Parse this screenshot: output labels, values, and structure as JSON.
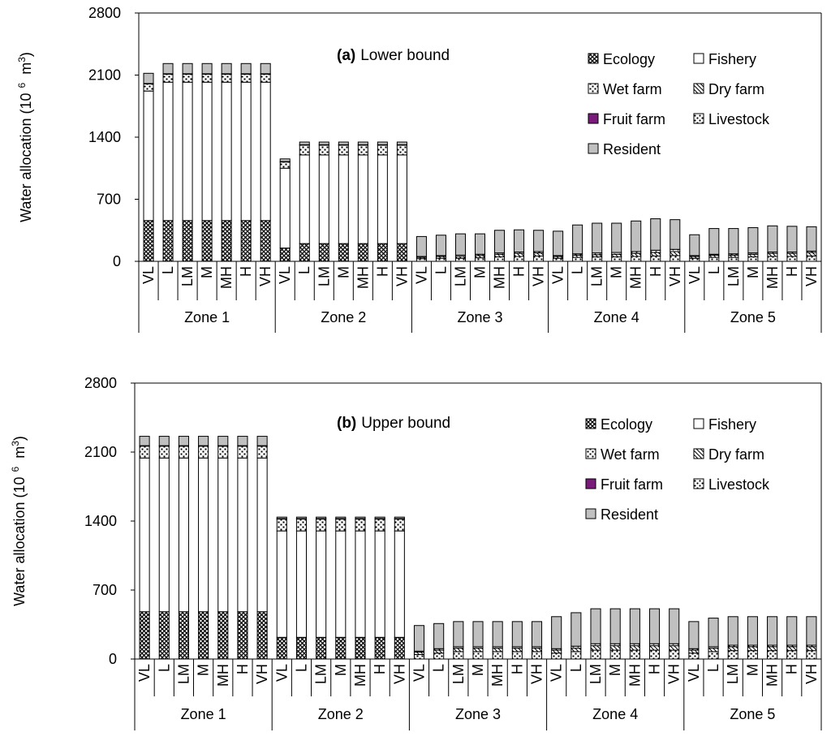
{
  "colors": {
    "fruit_farm": "#7a1a7a",
    "resident": "#c0c0c0",
    "axis": "#000000"
  },
  "legend": [
    {
      "key": "ecology",
      "label": "Ecology",
      "fill": "ecology"
    },
    {
      "key": "fishery",
      "label": "Fishery",
      "fill": "fishery"
    },
    {
      "key": "wet_farm",
      "label": "Wet farm",
      "fill": "wet"
    },
    {
      "key": "dry_farm",
      "label": "Dry farm",
      "fill": "dry"
    },
    {
      "key": "fruit_farm",
      "label": "Fruit farm",
      "fill": "fruit"
    },
    {
      "key": "livestock",
      "label": "Livestock",
      "fill": "livestock"
    },
    {
      "key": "resident",
      "label": "Resident",
      "fill": "resident"
    }
  ],
  "chart_data": [
    {
      "type": "bar",
      "stacked": true,
      "title_prefix": "(a)",
      "title": "Lower bound",
      "ylabel": "Water allocation (10",
      "ylabel_exp": "6",
      "ylabel_unit": "m",
      "ylabel_unit_exp": "3",
      "ylabel_close": ")",
      "ylim": [
        0,
        2800
      ],
      "yticks": [
        "0",
        "700",
        "1400",
        "2100",
        "2800"
      ],
      "zones": [
        "Zone 1",
        "Zone 2",
        "Zone 3",
        "Zone 4",
        "Zone 5"
      ],
      "scenarios": [
        "VL",
        "L",
        "LM",
        "M",
        "MH",
        "H",
        "VH"
      ],
      "series_order": [
        "ecology",
        "fishery",
        "wet_farm",
        "dry_farm",
        "fruit_farm",
        "livestock",
        "resident"
      ],
      "values": {
        "ecology": [
          [
            460,
            460,
            460,
            460,
            460,
            460,
            460
          ],
          [
            150,
            200,
            200,
            200,
            200,
            200,
            200
          ],
          [
            0,
            0,
            0,
            0,
            0,
            0,
            0
          ],
          [
            0,
            0,
            0,
            0,
            0,
            0,
            0
          ],
          [
            0,
            0,
            0,
            0,
            0,
            0,
            0
          ]
        ],
        "fishery": [
          [
            1460,
            1560,
            1560,
            1560,
            1560,
            1560,
            1560
          ],
          [
            900,
            1000,
            1000,
            1000,
            1000,
            1000,
            1000
          ],
          [
            0,
            0,
            0,
            0,
            0,
            0,
            0
          ],
          [
            0,
            0,
            0,
            0,
            0,
            0,
            0
          ],
          [
            0,
            0,
            0,
            0,
            0,
            0,
            0
          ]
        ],
        "wet_farm": [
          [
            80,
            90,
            90,
            90,
            90,
            90,
            90
          ],
          [
            70,
            110,
            110,
            110,
            110,
            110,
            110
          ],
          [
            30,
            35,
            35,
            40,
            50,
            55,
            60
          ],
          [
            35,
            45,
            50,
            50,
            55,
            60,
            65
          ],
          [
            35,
            45,
            45,
            50,
            55,
            55,
            60
          ]
        ],
        "dry_farm": [
          [
            0,
            0,
            0,
            0,
            0,
            0,
            0
          ],
          [
            0,
            0,
            0,
            0,
            0,
            0,
            0
          ],
          [
            15,
            20,
            20,
            25,
            30,
            35,
            35
          ],
          [
            20,
            25,
            25,
            30,
            35,
            40,
            45
          ],
          [
            20,
            25,
            25,
            30,
            35,
            35,
            40
          ]
        ],
        "fruit_farm": [
          [
            0,
            0,
            0,
            0,
            0,
            0,
            0
          ],
          [
            0,
            0,
            0,
            0,
            0,
            0,
            0
          ],
          [
            0,
            0,
            0,
            0,
            0,
            0,
            0
          ],
          [
            0,
            0,
            0,
            0,
            0,
            0,
            0
          ],
          [
            0,
            0,
            0,
            0,
            0,
            0,
            0
          ]
        ],
        "livestock": [
          [
            5,
            5,
            5,
            5,
            5,
            5,
            5
          ],
          [
            5,
            5,
            5,
            5,
            5,
            5,
            5
          ],
          [
            10,
            10,
            15,
            15,
            15,
            15,
            15
          ],
          [
            10,
            15,
            20,
            20,
            20,
            25,
            25
          ],
          [
            10,
            10,
            15,
            15,
            15,
            15,
            15
          ]
        ],
        "resident": [
          [
            115,
            115,
            115,
            115,
            115,
            115,
            115
          ],
          [
            30,
            30,
            30,
            30,
            30,
            30,
            30
          ],
          [
            225,
            230,
            240,
            230,
            255,
            250,
            240
          ],
          [
            275,
            325,
            335,
            330,
            345,
            355,
            335
          ],
          [
            235,
            290,
            285,
            285,
            295,
            290,
            275
          ]
        ]
      }
    },
    {
      "type": "bar",
      "stacked": true,
      "title_prefix": "(b)",
      "title": "Upper bound",
      "ylabel": "Water allocation (10",
      "ylabel_exp": "6",
      "ylabel_unit": "m",
      "ylabel_unit_exp": "3",
      "ylabel_close": ")",
      "ylim": [
        0,
        2800
      ],
      "yticks": [
        "0",
        "700",
        "1400",
        "2100",
        "2800"
      ],
      "zones": [
        "Zone 1",
        "Zone 2",
        "Zone 3",
        "Zone 4",
        "Zone 5"
      ],
      "scenarios": [
        "VL",
        "L",
        "LM",
        "M",
        "MH",
        "H",
        "VH"
      ],
      "series_order": [
        "ecology",
        "fishery",
        "wet_farm",
        "dry_farm",
        "fruit_farm",
        "livestock",
        "resident"
      ],
      "values": {
        "ecology": [
          [
            480,
            480,
            480,
            480,
            480,
            480,
            480
          ],
          [
            220,
            220,
            220,
            220,
            220,
            220,
            220
          ],
          [
            0,
            0,
            0,
            0,
            0,
            0,
            0
          ],
          [
            0,
            0,
            0,
            0,
            0,
            0,
            0
          ],
          [
            0,
            0,
            0,
            0,
            0,
            0,
            0
          ]
        ],
        "fishery": [
          [
            1560,
            1560,
            1560,
            1560,
            1560,
            1560,
            1560
          ],
          [
            1080,
            1080,
            1080,
            1080,
            1080,
            1080,
            1080
          ],
          [
            0,
            0,
            0,
            0,
            0,
            0,
            0
          ],
          [
            0,
            0,
            0,
            0,
            0,
            0,
            0
          ],
          [
            0,
            0,
            0,
            0,
            0,
            0,
            0
          ]
        ],
        "wet_farm": [
          [
            120,
            120,
            120,
            120,
            120,
            120,
            120
          ],
          [
            120,
            120,
            120,
            120,
            120,
            120,
            120
          ],
          [
            45,
            60,
            75,
            75,
            75,
            75,
            75
          ],
          [
            60,
            75,
            90,
            90,
            90,
            90,
            90
          ],
          [
            60,
            75,
            85,
            85,
            85,
            85,
            85
          ]
        ],
        "dry_farm": [
          [
            0,
            0,
            0,
            0,
            0,
            0,
            0
          ],
          [
            0,
            0,
            0,
            0,
            0,
            0,
            0
          ],
          [
            25,
            30,
            35,
            35,
            35,
            35,
            35
          ],
          [
            30,
            35,
            45,
            45,
            45,
            45,
            45
          ],
          [
            30,
            35,
            40,
            40,
            40,
            40,
            40
          ]
        ],
        "fruit_farm": [
          [
            0,
            0,
            0,
            0,
            0,
            0,
            0
          ],
          [
            0,
            0,
            0,
            0,
            0,
            0,
            0
          ],
          [
            0,
            0,
            0,
            0,
            0,
            0,
            0
          ],
          [
            0,
            0,
            0,
            0,
            0,
            0,
            0
          ],
          [
            0,
            0,
            0,
            0,
            0,
            0,
            0
          ]
        ],
        "livestock": [
          [
            5,
            5,
            5,
            5,
            5,
            5,
            5
          ],
          [
            5,
            5,
            5,
            5,
            5,
            5,
            5
          ],
          [
            10,
            15,
            15,
            15,
            15,
            15,
            15
          ],
          [
            15,
            20,
            20,
            20,
            20,
            20,
            20
          ],
          [
            15,
            15,
            15,
            15,
            15,
            15,
            15
          ]
        ],
        "resident": [
          [
            95,
            95,
            95,
            95,
            95,
            95,
            95
          ],
          [
            15,
            15,
            15,
            15,
            15,
            15,
            15
          ],
          [
            260,
            255,
            255,
            255,
            255,
            255,
            255
          ],
          [
            325,
            340,
            355,
            355,
            355,
            355,
            355
          ],
          [
            275,
            290,
            290,
            290,
            290,
            290,
            290
          ]
        ]
      }
    }
  ]
}
